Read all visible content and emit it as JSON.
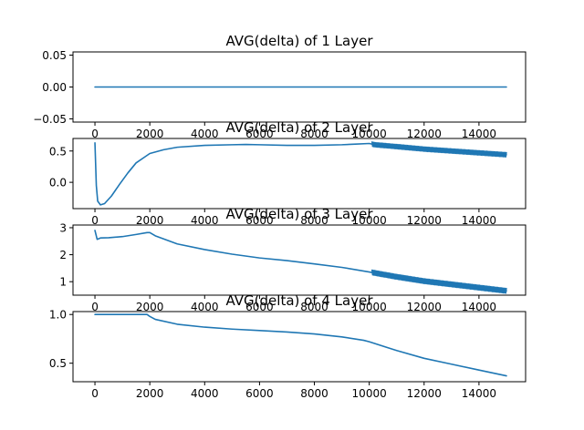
{
  "colors": {
    "series": "#1f77b4",
    "frame": "#000000",
    "background": "#ffffff"
  },
  "chart_data": [
    {
      "type": "line",
      "title": "AVG(delta) of 1 Layer",
      "xlabel": "",
      "ylabel": "",
      "xlim": [
        -800,
        15700
      ],
      "ylim": [
        -0.055,
        0.055
      ],
      "xticks": [
        0,
        2000,
        4000,
        6000,
        8000,
        10000,
        12000,
        14000
      ],
      "xtick_labels": [
        "0",
        "2000",
        "4000",
        "6000",
        "8000",
        "10000",
        "12000",
        "14000"
      ],
      "yticks": [
        0.05,
        0.0,
        -0.05
      ],
      "ytick_labels": [
        "0.05",
        "0.00",
        "−0.05"
      ],
      "grid": false,
      "series": [
        {
          "x": [
            0,
            15000
          ],
          "y": [
            0.0,
            0.0
          ]
        }
      ]
    },
    {
      "type": "line",
      "title": "AVG(delta) of 2 Layer",
      "xlabel": "",
      "ylabel": "",
      "xlim": [
        -800,
        15700
      ],
      "ylim": [
        -0.42,
        0.7
      ],
      "xticks": [
        0,
        2000,
        4000,
        6000,
        8000,
        10000,
        12000,
        14000
      ],
      "xtick_labels": [
        "0",
        "2000",
        "4000",
        "6000",
        "8000",
        "10000",
        "12000",
        "14000"
      ],
      "yticks": [
        0.5,
        0.0
      ],
      "ytick_labels": [
        "0.5",
        "0.0"
      ],
      "grid": false,
      "series": [
        {
          "x": [
            0,
            50,
            100,
            200,
            350,
            600,
            900,
            1200,
            1500,
            1800,
            2000,
            2500,
            3000,
            4000,
            5000,
            5500,
            6000,
            7000,
            8000,
            9000,
            9500,
            10000,
            10200,
            11000,
            12000,
            13000,
            14000,
            15000
          ],
          "y": [
            0.63,
            -0.05,
            -0.3,
            -0.36,
            -0.34,
            -0.22,
            -0.03,
            0.15,
            0.31,
            0.4,
            0.46,
            0.52,
            0.56,
            0.59,
            0.6,
            0.605,
            0.6,
            0.59,
            0.59,
            0.6,
            0.61,
            0.62,
            0.6,
            0.57,
            0.53,
            0.5,
            0.47,
            0.44
          ]
        }
      ],
      "oscillation": {
        "from_x": 10100,
        "to_x": 15000,
        "amplitude": 0.035
      }
    },
    {
      "type": "line",
      "title": "AVG(delta) of 3 Layer",
      "xlabel": "",
      "ylabel": "",
      "xlim": [
        -800,
        15700
      ],
      "ylim": [
        0.5,
        3.1
      ],
      "xticks": [
        0,
        2000,
        4000,
        6000,
        8000,
        10000,
        12000,
        14000
      ],
      "xtick_labels": [
        "0",
        "2000",
        "4000",
        "6000",
        "8000",
        "10000",
        "12000",
        "14000"
      ],
      "yticks": [
        3,
        2,
        1
      ],
      "ytick_labels": [
        "3",
        "2",
        "1"
      ],
      "grid": false,
      "series": [
        {
          "x": [
            0,
            80,
            200,
            500,
            1000,
            1500,
            1900,
            2000,
            2200,
            3000,
            4000,
            5000,
            6000,
            7000,
            8000,
            9000,
            10000,
            11000,
            12000,
            13000,
            14000,
            15000
          ],
          "y": [
            2.9,
            2.57,
            2.62,
            2.63,
            2.67,
            2.75,
            2.82,
            2.82,
            2.7,
            2.4,
            2.19,
            2.02,
            1.88,
            1.78,
            1.66,
            1.53,
            1.36,
            1.18,
            1.02,
            0.9,
            0.78,
            0.66
          ]
        }
      ],
      "oscillation": {
        "from_x": 10100,
        "to_x": 15000,
        "amplitude": 0.09
      }
    },
    {
      "type": "line",
      "title": "AVG(delta) of 4 Layer",
      "xlabel": "",
      "ylabel": "",
      "xlim": [
        -800,
        15700
      ],
      "ylim": [
        0.31,
        1.03
      ],
      "xticks": [
        0,
        2000,
        4000,
        6000,
        8000,
        10000,
        12000,
        14000
      ],
      "xtick_labels": [
        "0",
        "2000",
        "4000",
        "6000",
        "8000",
        "10000",
        "12000",
        "14000"
      ],
      "yticks": [
        1.0,
        0.5
      ],
      "ytick_labels": [
        "1.0",
        "0.5"
      ],
      "grid": false,
      "series": [
        {
          "x": [
            0,
            1000,
            1900,
            2000,
            2200,
            3000,
            4000,
            5000,
            6000,
            7000,
            8000,
            9000,
            9800,
            10000,
            11000,
            12000,
            13000,
            14000,
            15000
          ],
          "y": [
            1.0,
            1.0,
            1.0,
            0.98,
            0.95,
            0.9,
            0.87,
            0.85,
            0.835,
            0.82,
            0.8,
            0.77,
            0.735,
            0.72,
            0.63,
            0.55,
            0.49,
            0.43,
            0.37
          ]
        }
      ]
    }
  ]
}
